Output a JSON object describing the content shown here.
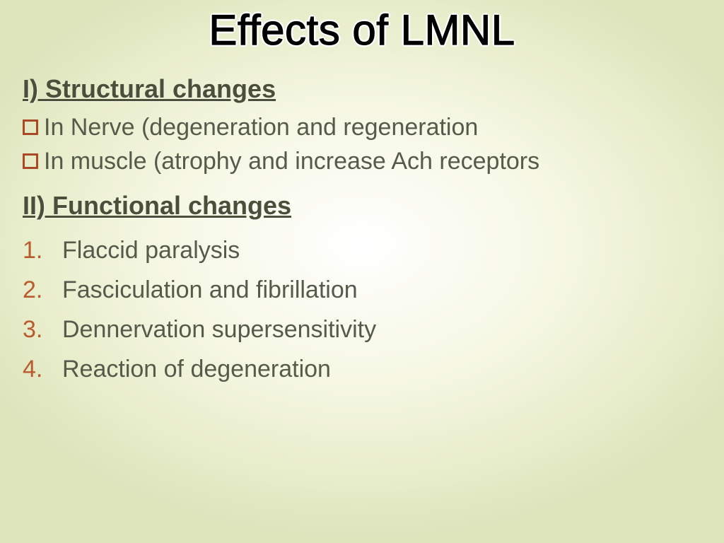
{
  "title": "Effects of LMNL",
  "section1": {
    "heading": "I)  Structural changes",
    "bullets": [
      "In Nerve (degeneration and regeneration",
      "In muscle (atrophy and increase Ach receptors"
    ]
  },
  "section2": {
    "heading": "II) Functional changes",
    "items": [
      {
        "num": "1.",
        "text": "Flaccid paralysis"
      },
      {
        "num": "2.",
        "text": "Fasciculation and fibrillation"
      },
      {
        "num": "3.",
        "text": "Dennervation supersensitivity"
      },
      {
        "num": "4.",
        "text": "Reaction of degeneration"
      }
    ]
  },
  "colors": {
    "bullet_border": "#a94a24",
    "number_color": "#b85c2e",
    "text_color": "#555a4a",
    "heading_color": "#4a4f3a"
  }
}
